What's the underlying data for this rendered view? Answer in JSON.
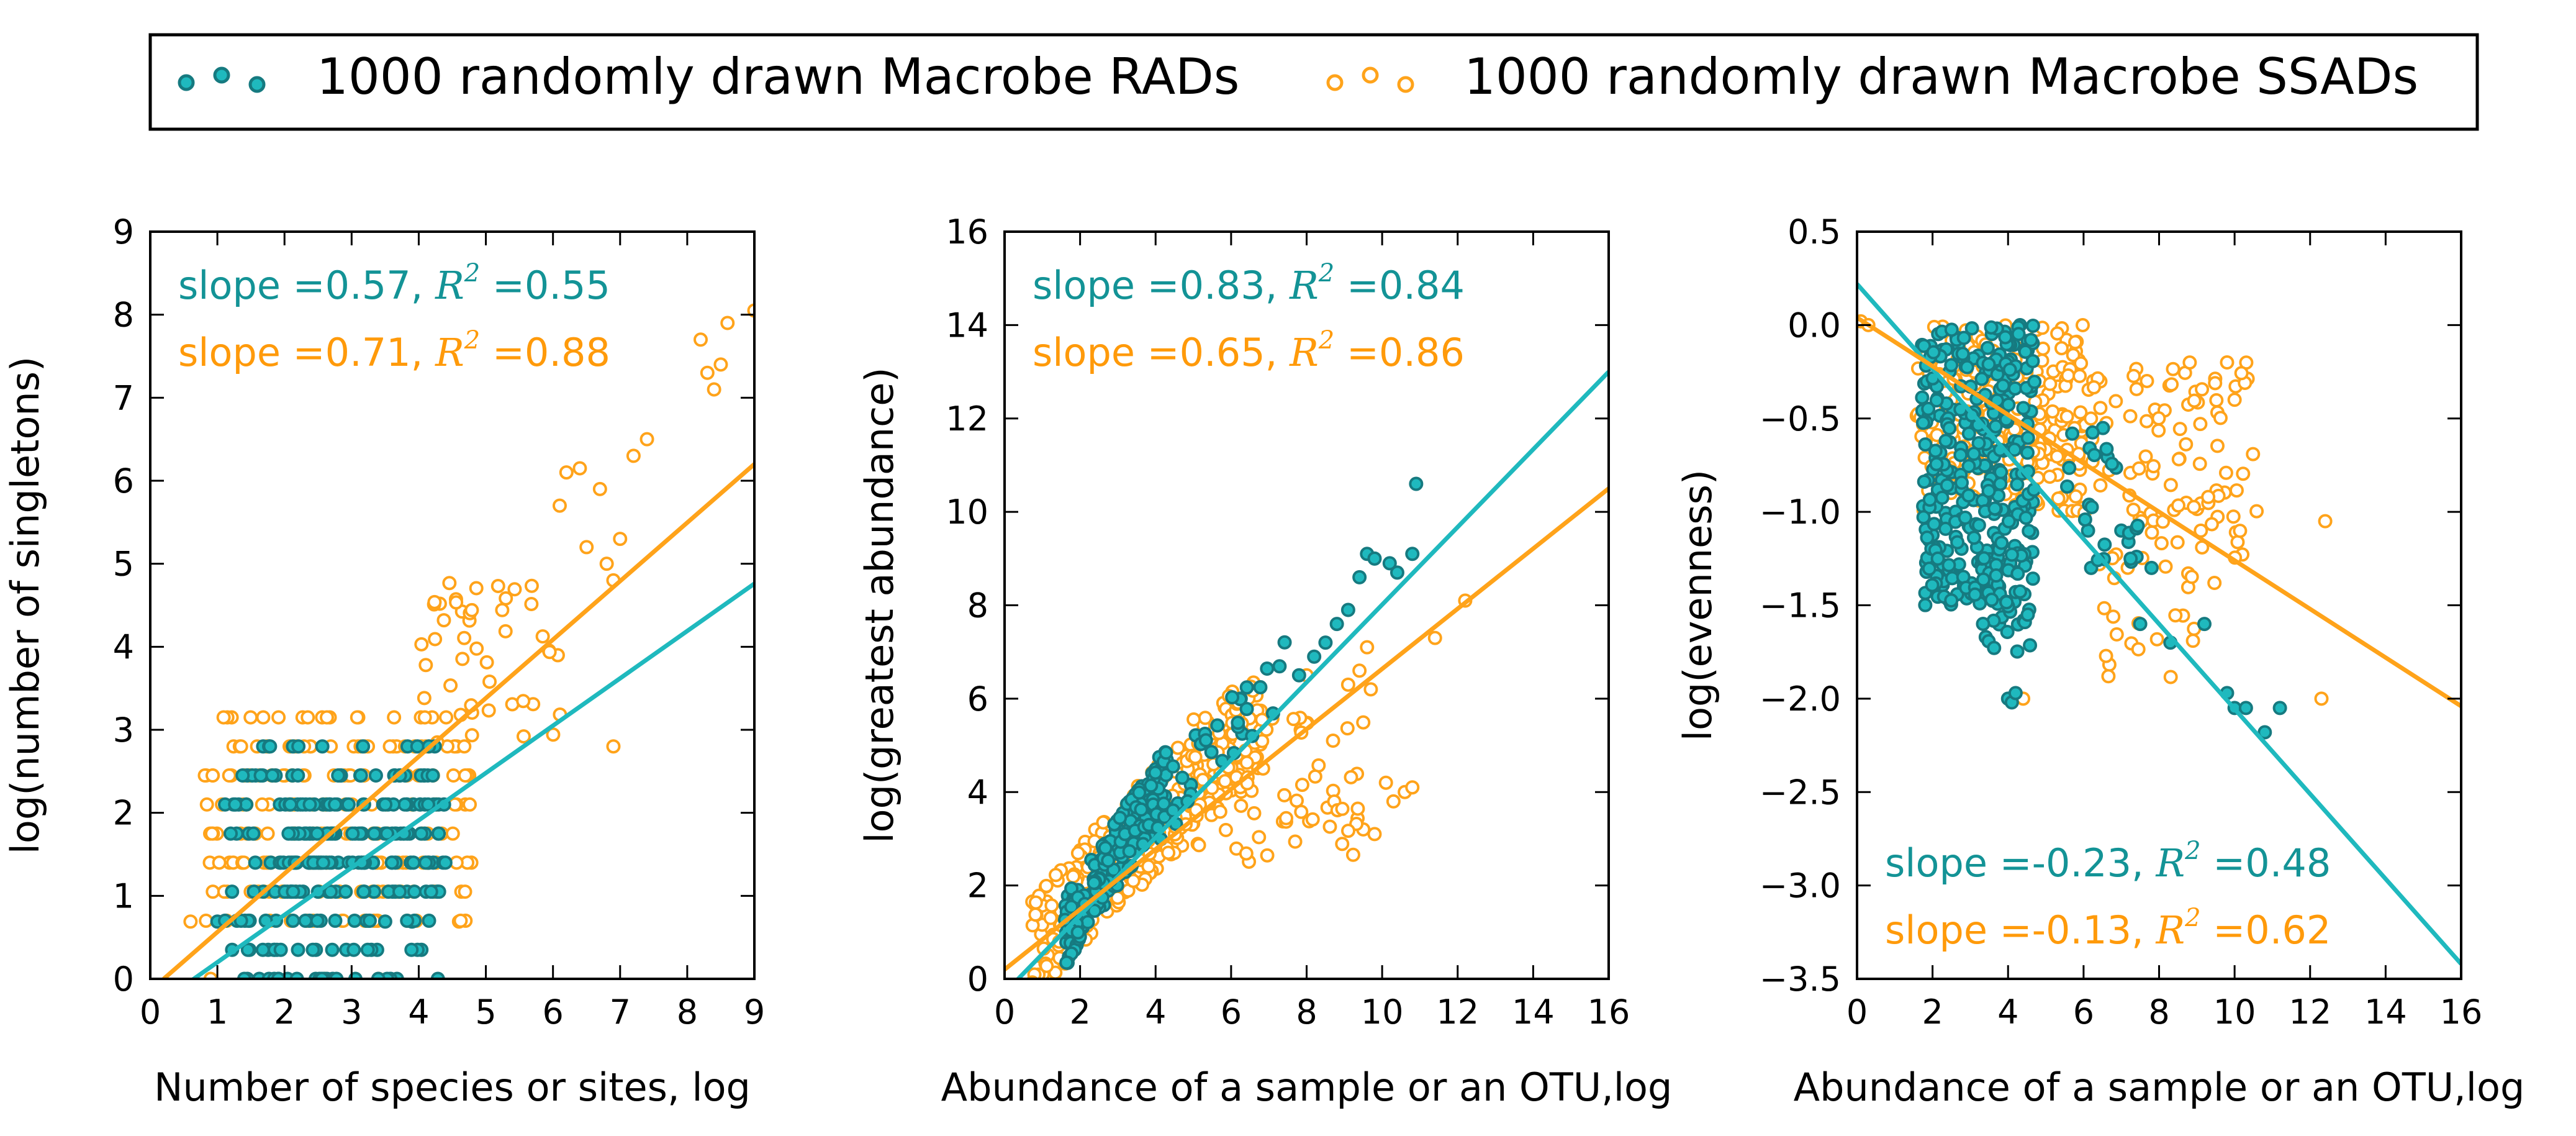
{
  "colors": {
    "rad": "#1fb9be",
    "rad_edge": "#167a80",
    "rad_text": "#139396",
    "ssad": "#ffa31a",
    "ssad_text": "#ff9a0a",
    "axis": "#000000",
    "background": "#ffffff"
  },
  "legend": {
    "placement": "top-center",
    "entries": [
      {
        "series": "rad",
        "label": "1000 randomly drawn Macrobe RADs"
      },
      {
        "series": "ssad",
        "label": "1000 randomly drawn Macrobe SSADs"
      }
    ]
  },
  "chart_data": [
    {
      "type": "scatter",
      "xlabel": "Number of species or sites, log",
      "ylabel": "log(number of singletons)",
      "xlim": [
        0,
        9
      ],
      "ylim": [
        0,
        9
      ],
      "xticks": [
        "0",
        "1",
        "2",
        "3",
        "4",
        "5",
        "6",
        "7",
        "8",
        "9"
      ],
      "yticks": [
        "0",
        "1",
        "2",
        "3",
        "4",
        "5",
        "6",
        "7",
        "8",
        "9"
      ],
      "annotation_placement": "top-left",
      "series": [
        {
          "key": "rad",
          "slope": 0.57,
          "r2": 0.55,
          "label_prefix": "slope =0.57, ",
          "label_r": "R",
          "label_sup": "2",
          "label_suffix": " =0.55",
          "fit": [
            [
              0.0,
              -0.37
            ],
            [
              9.0,
              4.76
            ]
          ],
          "clusters": [
            {
              "x": [
                1.1,
                4.3
              ],
              "y": [
                0.0,
                2.8
              ],
              "n": 150,
              "round": 0.35
            },
            {
              "x": [
                2.0,
                3.2
              ],
              "y": [
                1.0,
                2.2
              ],
              "n": 70,
              "round": 0.35
            },
            {
              "x": [
                3.5,
                4.4
              ],
              "y": [
                1.0,
                2.7
              ],
              "n": 45,
              "round": 0.35
            },
            {
              "x": [
                1.3,
                3.9
              ],
              "y": [
                0.0,
                0.0
              ],
              "n": 12
            }
          ],
          "points": [
            [
              1.0,
              0.69
            ],
            [
              3.5,
              0.69
            ],
            [
              3.9,
              0.69
            ]
          ]
        },
        {
          "key": "ssad",
          "slope": 0.71,
          "r2": 0.88,
          "label_prefix": "slope =0.71, ",
          "label_r": "R",
          "label_sup": "2",
          "label_suffix": " =0.88",
          "fit": [
            [
              0.2,
              0.0
            ],
            [
              9.0,
              6.2
            ]
          ],
          "clusters": [
            {
              "x": [
                0.8,
                4.8
              ],
              "y": [
                0.7,
                3.2
              ],
              "n": 210,
              "round": 0.35
            },
            {
              "x": [
                4.0,
                6.2
              ],
              "y": [
                2.8,
                4.8
              ],
              "n": 45
            }
          ],
          "points": [
            [
              0.6,
              0.69
            ],
            [
              0.9,
              0.0
            ],
            [
              2.6,
              0.0
            ],
            [
              3.4,
              0.0
            ],
            [
              4.6,
              0.69
            ],
            [
              6.1,
              5.7
            ],
            [
              6.2,
              6.1
            ],
            [
              6.4,
              6.15
            ],
            [
              6.5,
              5.2
            ],
            [
              6.7,
              5.9
            ],
            [
              6.8,
              5.0
            ],
            [
              6.9,
              4.8
            ],
            [
              7.0,
              5.3
            ],
            [
              7.2,
              6.3
            ],
            [
              7.4,
              6.5
            ],
            [
              6.9,
              2.8
            ],
            [
              8.2,
              7.7
            ],
            [
              8.3,
              7.3
            ],
            [
              8.4,
              7.1
            ],
            [
              8.5,
              7.4
            ],
            [
              8.6,
              7.9
            ],
            [
              9.0,
              8.05
            ]
          ]
        }
      ]
    },
    {
      "type": "scatter",
      "xlabel": "Abundance of a sample or an OTU,log",
      "ylabel": "log(greatest abundance)",
      "xlim": [
        0,
        16
      ],
      "ylim": [
        0,
        16
      ],
      "xticks": [
        "0",
        "2",
        "4",
        "6",
        "8",
        "10",
        "12",
        "14",
        "16"
      ],
      "yticks": [
        "0",
        "2",
        "4",
        "6",
        "8",
        "10",
        "12",
        "14",
        "16"
      ],
      "annotation_placement": "top-left",
      "series": [
        {
          "key": "rad",
          "slope": 0.83,
          "r2": 0.84,
          "label_prefix": "slope =0.83, ",
          "label_r": "R",
          "label_sup": "2",
          "label_suffix": " =0.84",
          "fit": [
            [
              0.0,
              -0.3
            ],
            [
              16.0,
              13.0
            ]
          ],
          "clusters": [
            {
              "x": [
                1.6,
                4.3
              ],
              "y": [
                1.0,
                4.3
              ],
              "n": 200,
              "diag": true
            },
            {
              "x": [
                4.0,
                7.6
              ],
              "y": [
                3.5,
                6.8
              ],
              "n": 35,
              "diag": true
            }
          ],
          "points": [
            [
              7.8,
              6.5
            ],
            [
              8.2,
              6.9
            ],
            [
              8.5,
              7.2
            ],
            [
              8.8,
              7.6
            ],
            [
              9.1,
              7.9
            ],
            [
              9.4,
              8.6
            ],
            [
              9.6,
              9.1
            ],
            [
              9.8,
              9.0
            ],
            [
              10.2,
              8.9
            ],
            [
              10.4,
              8.7
            ],
            [
              10.8,
              9.1
            ],
            [
              10.9,
              10.6
            ]
          ]
        },
        {
          "key": "ssad",
          "slope": 0.65,
          "r2": 0.86,
          "label_prefix": "slope =0.65, ",
          "label_r": "R",
          "label_sup": "2",
          "label_suffix": " =0.86",
          "fit": [
            [
              0.0,
              0.2
            ],
            [
              16.0,
              10.5
            ]
          ],
          "clusters": [
            {
              "x": [
                0.7,
                6.8
              ],
              "y": [
                0.7,
                5.7
              ],
              "n": 330,
              "diag": true
            },
            {
              "x": [
                5.0,
                9.6
              ],
              "y": [
                2.5,
                5.6
              ],
              "n": 70
            }
          ],
          "points": [
            [
              8.7,
              5.1
            ],
            [
              9.1,
              6.3
            ],
            [
              9.4,
              6.6
            ],
            [
              9.6,
              7.1
            ],
            [
              10.1,
              4.2
            ],
            [
              10.3,
              3.8
            ],
            [
              10.6,
              4.0
            ],
            [
              10.8,
              4.1
            ],
            [
              9.5,
              3.2
            ],
            [
              9.8,
              3.1
            ],
            [
              11.4,
              7.3
            ],
            [
              12.2,
              8.1
            ],
            [
              9.7,
              6.2
            ],
            [
              8.0,
              6.5
            ]
          ]
        }
      ]
    },
    {
      "type": "scatter",
      "xlabel": "Abundance of a sample or an OTU,log",
      "ylabel": "log(evenness)",
      "xlim": [
        0,
        16
      ],
      "ylim": [
        -3.5,
        0.5
      ],
      "xticks": [
        "0",
        "2",
        "4",
        "6",
        "8",
        "10",
        "12",
        "14",
        "16"
      ],
      "yticks": [
        "−3.5",
        "−3.0",
        "−2.5",
        "−2.0",
        "−1.5",
        "−1.0",
        "−0.5",
        "0.0",
        "0.5"
      ],
      "annotation_placement": "bottom-left",
      "series": [
        {
          "key": "rad",
          "slope": -0.23,
          "r2": 0.48,
          "label_prefix": "slope =-0.23, ",
          "label_r": "R",
          "label_sup": "2",
          "label_suffix": " =0.48",
          "fit": [
            [
              0.0,
              0.22
            ],
            [
              16.0,
              -3.42
            ]
          ],
          "clusters": [
            {
              "x": [
                1.7,
                4.7
              ],
              "y": [
                -1.5,
                0.0
              ],
              "n": 330
            },
            {
              "x": [
                3.3,
                4.6
              ],
              "y": [
                -1.75,
                -1.2
              ],
              "n": 35
            },
            {
              "x": [
                5.5,
                7.5
              ],
              "y": [
                -1.3,
                -0.5
              ],
              "n": 25
            }
          ],
          "points": [
            [
              4.0,
              -2.0
            ],
            [
              4.1,
              -2.02
            ],
            [
              4.2,
              -1.97
            ],
            [
              7.5,
              -1.6
            ],
            [
              8.3,
              -1.7
            ],
            [
              9.2,
              -1.6
            ],
            [
              9.8,
              -1.97
            ],
            [
              10.0,
              -2.05
            ],
            [
              10.3,
              -2.05
            ],
            [
              10.8,
              -2.18
            ],
            [
              11.2,
              -2.05
            ],
            [
              6.2,
              -1.3
            ],
            [
              7.0,
              -1.1
            ],
            [
              7.8,
              -1.3
            ]
          ]
        },
        {
          "key": "ssad",
          "slope": -0.13,
          "r2": 0.62,
          "label_prefix": "slope =-0.13, ",
          "label_r": "R",
          "label_sup": "2",
          "label_suffix": " =0.62",
          "fit": [
            [
              0.0,
              0.04
            ],
            [
              16.0,
              -2.04
            ]
          ],
          "clusters": [
            {
              "x": [
                1.5,
                6.0
              ],
              "y": [
                -1.0,
                0.0
              ],
              "n": 240
            },
            {
              "x": [
                5.5,
                10.6
              ],
              "y": [
                -1.3,
                -0.2
              ],
              "n": 110
            },
            {
              "x": [
                6.5,
                9.5
              ],
              "y": [
                -1.9,
                -1.3
              ],
              "n": 20
            }
          ],
          "points": [
            [
              0.1,
              0.02
            ],
            [
              0.3,
              0.0
            ],
            [
              4.4,
              -2.0
            ],
            [
              12.3,
              -2.0
            ],
            [
              12.4,
              -1.05
            ],
            [
              9.8,
              -0.2
            ],
            [
              10.0,
              -0.4
            ]
          ]
        }
      ]
    }
  ]
}
